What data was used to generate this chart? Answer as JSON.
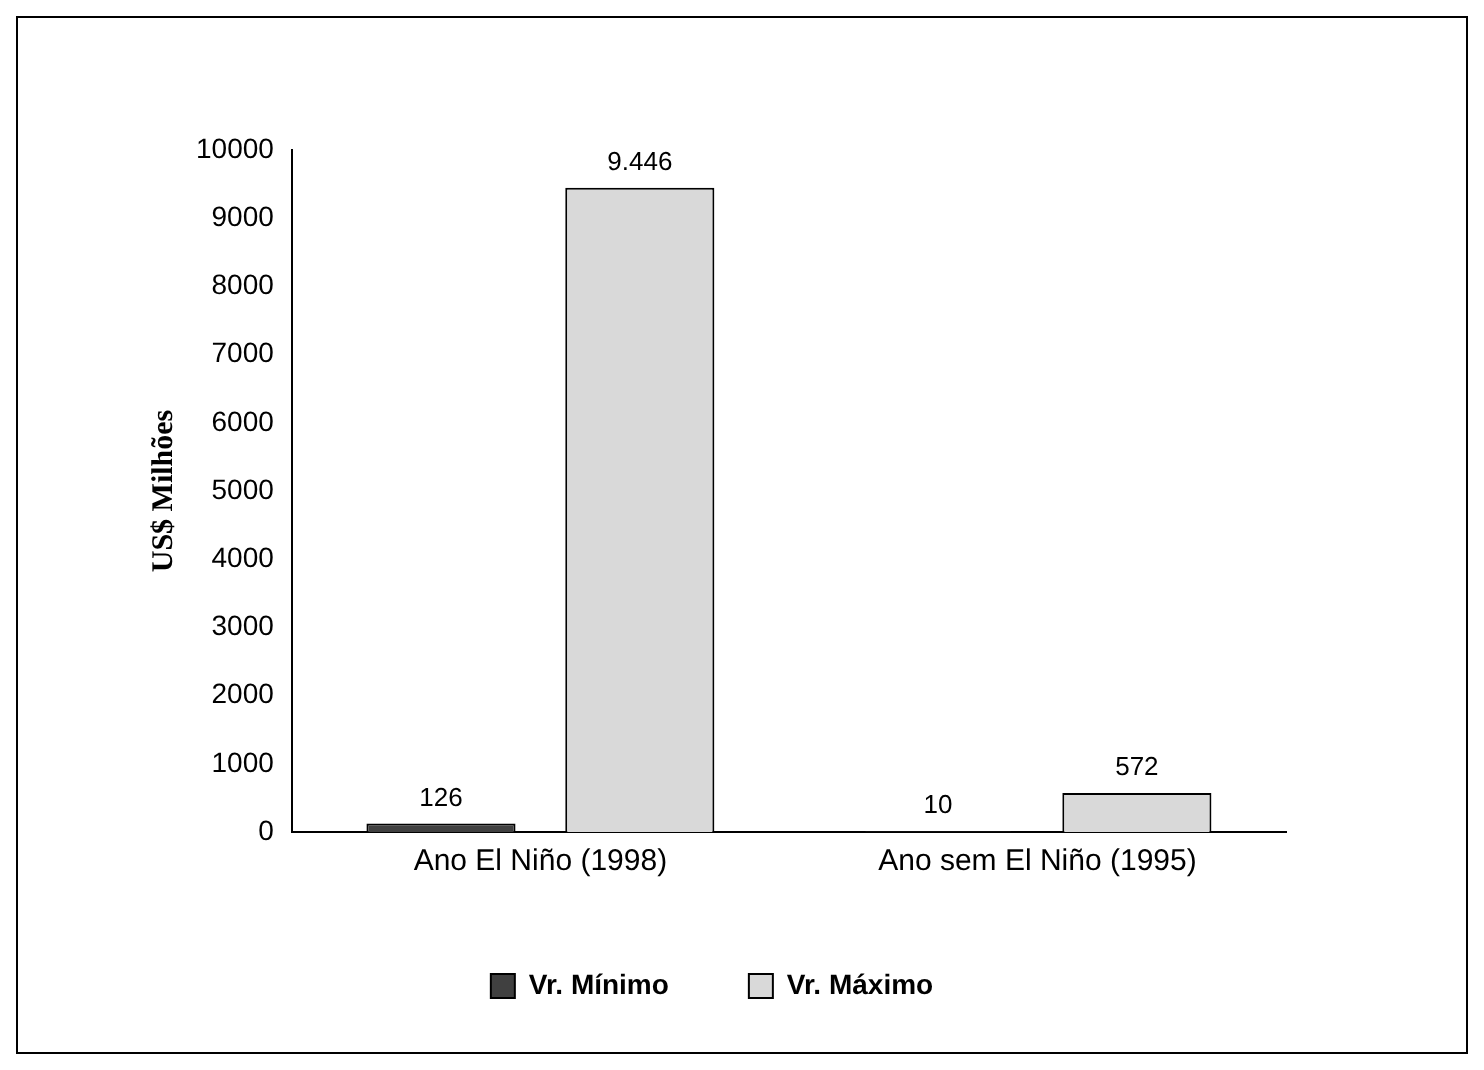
{
  "chart_data": {
    "type": "bar",
    "ylabel": "US$ Milhões",
    "categories": [
      "Ano El Niño (1998)",
      "Ano sem El Niño (1995)"
    ],
    "series": [
      {
        "name": "Vr. Mínimo",
        "color": "#404040",
        "values": [
          126,
          10
        ],
        "value_labels": [
          "126",
          "10"
        ]
      },
      {
        "name": "Vr. Máximo",
        "color": "#d9d9d9",
        "values": [
          9446,
          572
        ],
        "value_labels": [
          "9.446",
          "572"
        ]
      }
    ],
    "ylim": [
      0,
      10000
    ],
    "yticks": [
      0,
      1000,
      2000,
      3000,
      4000,
      5000,
      6000,
      7000,
      8000,
      9000,
      10000
    ],
    "grid": false,
    "legend": "bottom"
  }
}
